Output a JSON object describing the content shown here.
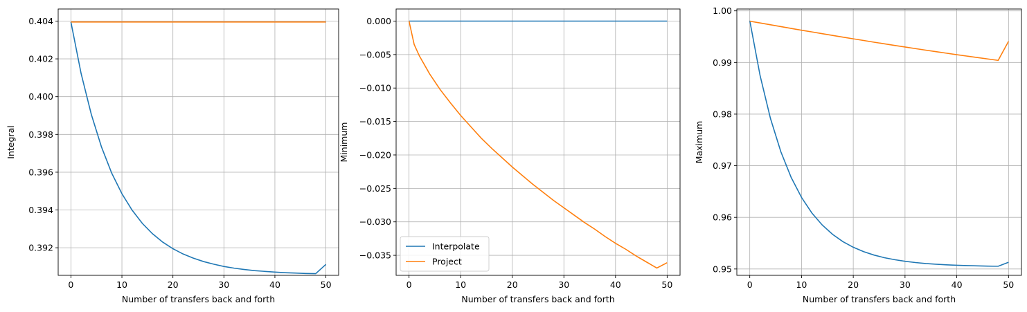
{
  "colors": {
    "series_1": "#1f77b4",
    "series_2": "#ff7f0e",
    "grid": "#b0b0b0",
    "axes": "#000000"
  },
  "legend": {
    "placement": "lower-left",
    "entries": [
      "Interpolate",
      "Project"
    ]
  },
  "chart_data": [
    {
      "type": "line",
      "title": "",
      "xlabel": "Number of transfers back and forth",
      "ylabel": "Integral",
      "xlim": [
        -2.5,
        52.5
      ],
      "ylim": [
        0.39054,
        0.40464
      ],
      "xticks": [
        0,
        10,
        20,
        30,
        40,
        50
      ],
      "xtick_labels": [
        "0",
        "10",
        "20",
        "30",
        "40",
        "50"
      ],
      "yticks": [
        0.392,
        0.394,
        0.396,
        0.398,
        0.4,
        0.402,
        0.404
      ],
      "ytick_labels": [
        "0.392",
        "0.394",
        "0.396",
        "0.398",
        "0.400",
        "0.402",
        "0.404"
      ],
      "grid": true,
      "legend": false,
      "x": [
        0,
        2,
        4,
        6,
        8,
        10,
        12,
        14,
        16,
        18,
        20,
        22,
        24,
        26,
        28,
        30,
        32,
        34,
        36,
        38,
        40,
        42,
        44,
        46,
        48,
        50
      ],
      "series": [
        {
          "name": "Interpolate",
          "values": [
            0.40395,
            0.40122,
            0.39906,
            0.39733,
            0.39595,
            0.39486,
            0.39399,
            0.39329,
            0.39274,
            0.3923,
            0.39195,
            0.39167,
            0.39145,
            0.39127,
            0.39113,
            0.39101,
            0.39092,
            0.39085,
            0.39079,
            0.39075,
            0.39071,
            0.39068,
            0.39066,
            0.39064,
            0.39063,
            0.39112
          ]
        },
        {
          "name": "Project",
          "values": [
            0.40395,
            0.40395,
            0.40395,
            0.40395,
            0.40395,
            0.40395,
            0.40395,
            0.40395,
            0.40395,
            0.40395,
            0.40395,
            0.40395,
            0.40395,
            0.40395,
            0.40395,
            0.40395,
            0.40395,
            0.40395,
            0.40395,
            0.40395,
            0.40395,
            0.40395,
            0.40395,
            0.40395,
            0.40395,
            0.40395
          ]
        }
      ]
    },
    {
      "type": "line",
      "title": "",
      "xlabel": "Number of transfers back and forth",
      "ylabel": "Minimum",
      "xlim": [
        -2.5,
        52.5
      ],
      "ylim": [
        -0.03799,
        0.00181
      ],
      "xticks": [
        0,
        10,
        20,
        30,
        40,
        50
      ],
      "xtick_labels": [
        "0",
        "10",
        "20",
        "30",
        "40",
        "50"
      ],
      "yticks": [
        -0.035,
        -0.03,
        -0.025,
        -0.02,
        -0.015,
        -0.01,
        -0.005,
        0.0
      ],
      "ytick_labels": [
        "−0.035",
        "−0.030",
        "−0.025",
        "−0.020",
        "−0.015",
        "−0.010",
        "−0.005",
        "0.000"
      ],
      "grid": true,
      "legend": true,
      "x": [
        0,
        1,
        2,
        4,
        6,
        8,
        10,
        12,
        14,
        16,
        18,
        20,
        22,
        24,
        26,
        28,
        30,
        32,
        34,
        36,
        38,
        40,
        42,
        44,
        46,
        48,
        50
      ],
      "series": [
        {
          "name": "Interpolate",
          "values": [
            0,
            0,
            0,
            0,
            0,
            0,
            0,
            0,
            0,
            0,
            0,
            0,
            0,
            0,
            0,
            0,
            0,
            0,
            0,
            0,
            0,
            0,
            0,
            0,
            0,
            0,
            0
          ]
        },
        {
          "name": "Project",
          "values": [
            0,
            -0.0035,
            -0.0052,
            -0.0079,
            -0.0102,
            -0.0122,
            -0.0141,
            -0.0158,
            -0.0175,
            -0.019,
            -0.0204,
            -0.0218,
            -0.0231,
            -0.0244,
            -0.0256,
            -0.0268,
            -0.0279,
            -0.029,
            -0.0301,
            -0.0311,
            -0.0322,
            -0.0332,
            -0.0341,
            -0.0351,
            -0.036,
            -0.0369,
            -0.0361
          ]
        }
      ]
    },
    {
      "type": "line",
      "title": "",
      "xlabel": "Number of transfers back and forth",
      "ylabel": "Maximum",
      "xlim": [
        -2.5,
        52.5
      ],
      "ylim": [
        0.94877,
        1.00036
      ],
      "xticks": [
        0,
        10,
        20,
        30,
        40,
        50
      ],
      "xtick_labels": [
        "0",
        "10",
        "20",
        "30",
        "40",
        "50"
      ],
      "yticks": [
        0.95,
        0.96,
        0.97,
        0.98,
        0.99,
        1.0
      ],
      "ytick_labels": [
        "0.95",
        "0.96",
        "0.97",
        "0.98",
        "0.99",
        "1.00"
      ],
      "grid": true,
      "legend": false,
      "x": [
        0,
        2,
        4,
        6,
        8,
        10,
        12,
        14,
        16,
        18,
        20,
        22,
        24,
        26,
        28,
        30,
        32,
        34,
        36,
        38,
        40,
        42,
        44,
        46,
        48,
        50
      ],
      "series": [
        {
          "name": "Interpolate",
          "values": [
            0.9981,
            0.98743,
            0.97915,
            0.97272,
            0.96773,
            0.96386,
            0.96085,
            0.95852,
            0.95671,
            0.9553,
            0.95421,
            0.95336,
            0.9527,
            0.95219,
            0.9518,
            0.95149,
            0.95125,
            0.95106,
            0.95092,
            0.95081,
            0.95072,
            0.95066,
            0.9506,
            0.95056,
            0.95053,
            0.9513
          ]
        },
        {
          "name": "Project",
          "values": [
            0.998,
            0.99765,
            0.9973,
            0.99695,
            0.9966,
            0.99625,
            0.99592,
            0.99558,
            0.99524,
            0.99491,
            0.99458,
            0.99426,
            0.99393,
            0.99362,
            0.9933,
            0.993,
            0.99269,
            0.99239,
            0.99209,
            0.9918,
            0.99151,
            0.99123,
            0.99095,
            0.99068,
            0.99041,
            0.9941
          ]
        }
      ]
    }
  ]
}
